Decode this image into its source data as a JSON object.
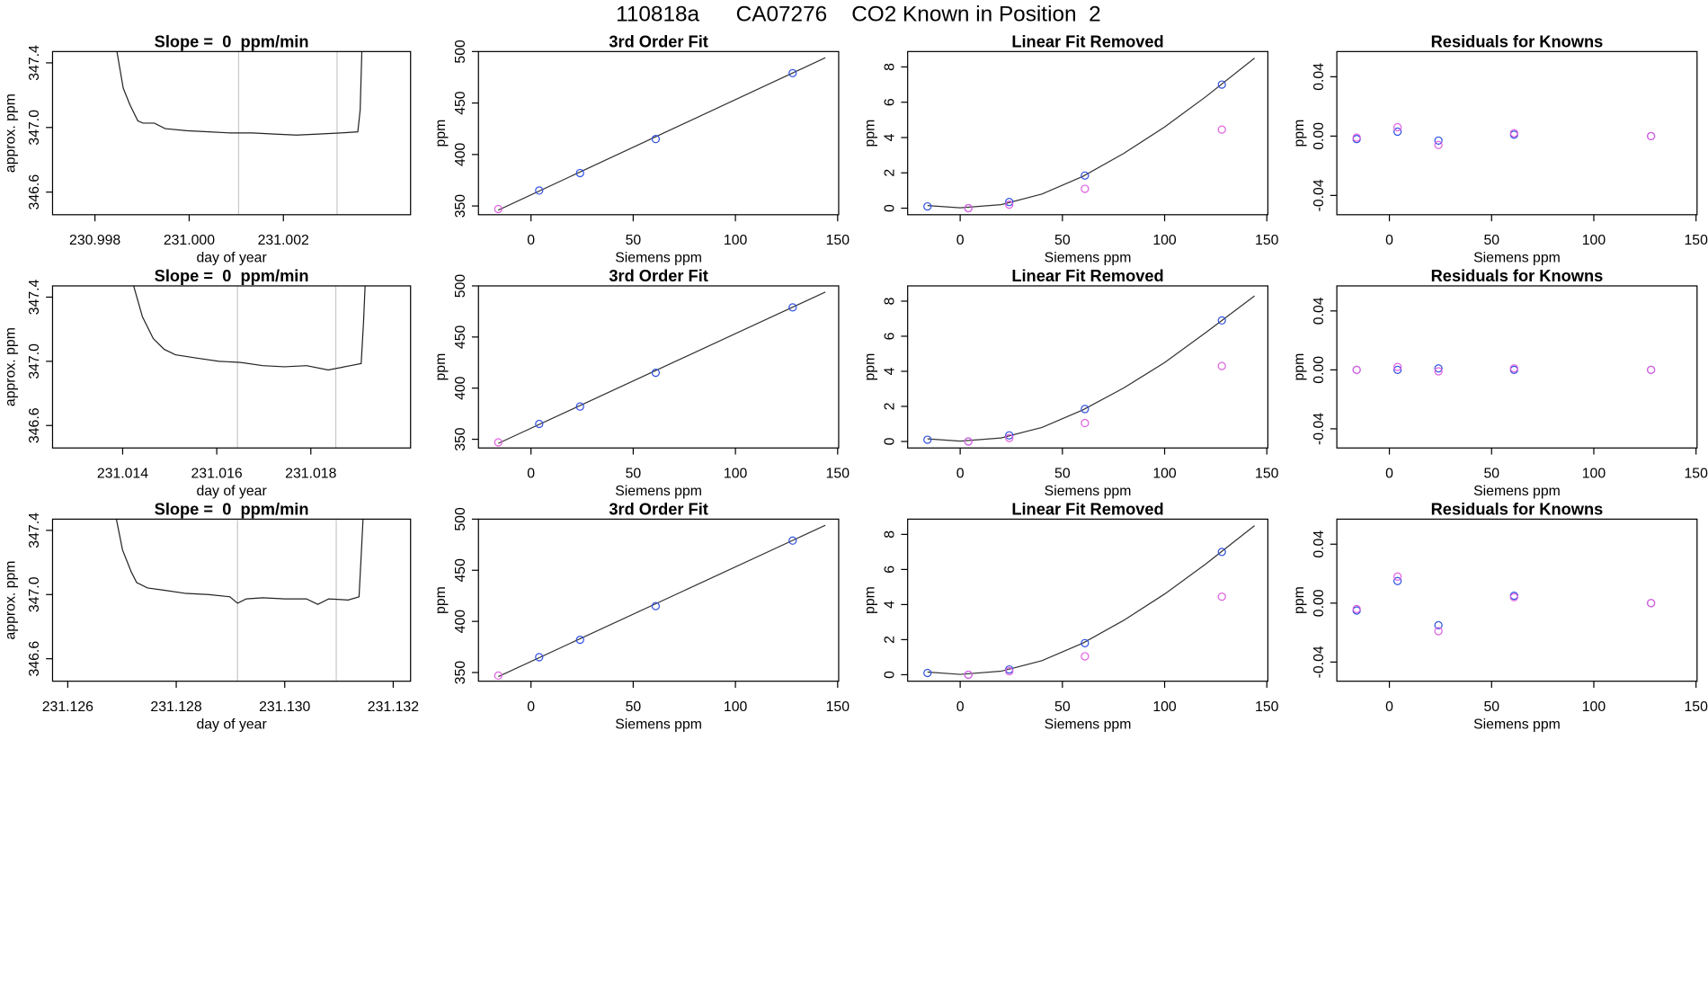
{
  "title": "110818a      CA07276    CO2 Known in Position  2",
  "chart_data": [
    {
      "type": "line",
      "title": "Slope =  0  ppm/min",
      "xlabel": "day of year",
      "ylabel": "approx. ppm",
      "color": "#222222",
      "x": [
        230.99844,
        230.9986,
        230.99874,
        230.99891,
        230.99902,
        230.99926,
        230.99949,
        230.99995,
        231.00042,
        231.00088,
        231.00135,
        231.00181,
        231.00228,
        231.00274,
        231.00321,
        231.00358,
        231.00363,
        231.00367
      ],
      "series": [
        {
          "values": [
            347.515,
            347.244,
            347.142,
            347.041,
            347.027,
            347.027,
            346.993,
            346.98,
            346.973,
            346.966,
            346.966,
            346.959,
            346.953,
            346.959,
            346.966,
            346.973,
            347.108,
            347.515
          ]
        }
      ],
      "vlines": [
        231.00105,
        231.00314
      ],
      "vline_color": "#c8c8c8",
      "xlim": [
        230.9971,
        231.0047
      ],
      "xticks": [
        230.998,
        {
          "value": 231,
          "label": "231.000"
        },
        231.002
      ],
      "ylim": [
        346.46,
        347.47
      ],
      "yticks": [
        346.6,
        {
          "value": 347,
          "label": "347.0"
        },
        347.4
      ]
    },
    {
      "type": "scatter",
      "title": "3rd Order Fit",
      "xlabel": "Siemens ppm",
      "ylabel": "ppm",
      "series": [
        {
          "color": "#3050e0",
          "x": [
            4,
            24,
            61,
            128
          ],
          "values": [
            365,
            382,
            415,
            479
          ]
        },
        {
          "color": "#e060e0",
          "x": [
            -16
          ],
          "values": [
            347
          ]
        }
      ],
      "fit": {
        "color": "#333333",
        "x": [
          -16,
          144
        ],
        "values": [
          346,
          494
        ]
      },
      "xlim": [
        -25.7,
        150.5
      ],
      "xticks": [
        0,
        50,
        100,
        150
      ],
      "ylim": [
        341.5,
        500
      ],
      "yticks": [
        350,
        400,
        450,
        500
      ]
    },
    {
      "type": "scatter",
      "title": "Linear Fit Removed",
      "xlabel": "Siemens ppm",
      "ylabel": "ppm",
      "series": [
        {
          "color": "#3050e0",
          "x": [
            -16,
            4,
            24,
            61,
            128
          ],
          "values": [
            0.1,
            0,
            0.35,
            1.85,
            7.0
          ]
        },
        {
          "color": "#e060e0",
          "x": [
            4,
            24,
            61,
            128
          ],
          "values": [
            0,
            0.2,
            1.1,
            4.45
          ]
        }
      ],
      "fit": {
        "color": "#333333",
        "x": [
          -16,
          0,
          20,
          40,
          60,
          80,
          100,
          120,
          144
        ],
        "values": [
          0.15,
          0.02,
          0.2,
          0.8,
          1.8,
          3.1,
          4.6,
          6.3,
          8.5
        ]
      },
      "xlim": [
        -25.7,
        150.5
      ],
      "xticks": [
        0,
        50,
        100,
        150
      ],
      "ylim": [
        -0.37,
        8.87
      ],
      "yticks": [
        0,
        2,
        4,
        6,
        8
      ]
    },
    {
      "type": "scatter",
      "title": "Residuals for Knowns",
      "xlabel": "Siemens ppm",
      "ylabel": "ppm",
      "series": [
        {
          "color": "#3050e0",
          "x": [
            -16,
            4,
            24,
            61,
            128
          ],
          "values": [
            -0.002,
            0.003,
            -0.003,
            0.001,
            0
          ]
        },
        {
          "color": "#e060e0",
          "x": [
            -16,
            4,
            24,
            61,
            128
          ],
          "values": [
            -0.001,
            0.006,
            -0.006,
            0.002,
            0
          ]
        }
      ],
      "xlim": [
        -25.7,
        150.5
      ],
      "xticks": [
        0,
        50,
        100,
        150
      ],
      "ylim": [
        -0.053,
        0.057
      ],
      "yticks": [
        -0.04,
        {
          "value": 0,
          "label": "0.00"
        },
        0.04
      ]
    },
    {
      "type": "line",
      "title": "Slope =  0  ppm/min",
      "xlabel": "day of year",
      "ylabel": "approx. ppm",
      "color": "#222222",
      "x": [
        231.01419,
        231.01442,
        231.01465,
        231.01488,
        231.01512,
        231.01558,
        231.01605,
        231.01651,
        231.01698,
        231.01744,
        231.01791,
        231.01837,
        231.01884,
        231.01907,
        231.01912,
        231.01916
      ],
      "series": [
        {
          "values": [
            347.515,
            347.278,
            347.142,
            347.075,
            347.041,
            347.02,
            347.0,
            346.993,
            346.973,
            346.966,
            346.973,
            346.946,
            346.973,
            346.986,
            347.244,
            347.515
          ]
        }
      ],
      "vlines": [
        231.01644,
        231.01853
      ],
      "vline_color": "#c8c8c8",
      "xlim": [
        231.01251,
        231.02012
      ],
      "xticks": [
        231.014,
        231.016,
        231.018
      ],
      "ylim": [
        346.46,
        347.47
      ],
      "yticks": [
        346.6,
        {
          "value": 347,
          "label": "347.0"
        },
        347.4
      ]
    },
    {
      "type": "scatter",
      "title": "3rd Order Fit",
      "xlabel": "Siemens ppm",
      "ylabel": "ppm",
      "series": [
        {
          "color": "#3050e0",
          "x": [
            4,
            24,
            61,
            128
          ],
          "values": [
            365,
            382,
            415,
            479
          ]
        },
        {
          "color": "#e060e0",
          "x": [
            -16
          ],
          "values": [
            347
          ]
        }
      ],
      "fit": {
        "color": "#333333",
        "x": [
          -16,
          144
        ],
        "values": [
          346,
          494
        ]
      },
      "xlim": [
        -25.7,
        150.5
      ],
      "xticks": [
        0,
        50,
        100,
        150
      ],
      "ylim": [
        341.5,
        500
      ],
      "yticks": [
        350,
        400,
        450,
        500
      ]
    },
    {
      "type": "scatter",
      "title": "Linear Fit Removed",
      "xlabel": "Siemens ppm",
      "ylabel": "ppm",
      "series": [
        {
          "color": "#3050e0",
          "x": [
            -16,
            4,
            24,
            61,
            128
          ],
          "values": [
            0.1,
            0,
            0.35,
            1.85,
            6.9
          ]
        },
        {
          "color": "#e060e0",
          "x": [
            4,
            24,
            61,
            128
          ],
          "values": [
            0,
            0.2,
            1.05,
            4.3
          ]
        }
      ],
      "fit": {
        "color": "#333333",
        "x": [
          -16,
          0,
          20,
          40,
          60,
          80,
          100,
          120,
          144
        ],
        "values": [
          0.15,
          0.02,
          0.2,
          0.8,
          1.8,
          3.05,
          4.5,
          6.2,
          8.3
        ]
      },
      "xlim": [
        -25.7,
        150.5
      ],
      "xticks": [
        0,
        50,
        100,
        150
      ],
      "ylim": [
        -0.37,
        8.87
      ],
      "yticks": [
        0,
        2,
        4,
        6,
        8
      ]
    },
    {
      "type": "scatter",
      "title": "Residuals for Knowns",
      "xlabel": "Siemens ppm",
      "ylabel": "ppm",
      "series": [
        {
          "color": "#3050e0",
          "x": [
            -16,
            4,
            24,
            61,
            128
          ],
          "values": [
            0,
            0,
            0.001,
            0,
            0
          ]
        },
        {
          "color": "#e060e0",
          "x": [
            -16,
            4,
            24,
            61,
            128
          ],
          "values": [
            0,
            0.002,
            -0.001,
            0.001,
            0
          ]
        }
      ],
      "xlim": [
        -25.7,
        150.5
      ],
      "xticks": [
        0,
        50,
        100,
        150
      ],
      "ylim": [
        -0.053,
        0.057
      ],
      "yticks": [
        -0.04,
        {
          "value": 0,
          "label": "0.00"
        },
        0.04
      ]
    },
    {
      "type": "line",
      "title": "Slope =  0  ppm/min",
      "xlabel": "day of year",
      "ylabel": "approx. ppm",
      "color": "#222222",
      "x": [
        231.12687,
        231.12701,
        231.12717,
        231.12727,
        231.12747,
        231.12778,
        231.12818,
        231.12859,
        231.12899,
        231.12913,
        231.12929,
        231.1296,
        231.13,
        231.1304,
        231.13061,
        231.13081,
        231.13117,
        231.13137,
        231.13141,
        231.13145
      ],
      "series": [
        {
          "values": [
            347.515,
            347.278,
            347.142,
            347.075,
            347.041,
            347.027,
            347.007,
            347.0,
            346.986,
            346.946,
            346.973,
            346.98,
            346.973,
            346.973,
            346.939,
            346.973,
            346.966,
            346.986,
            347.244,
            347.515
          ]
        }
      ],
      "vlines": [
        231.12913,
        231.13095
      ],
      "vline_color": "#c8c8c8",
      "xlim": [
        231.12572,
        231.13232
      ],
      "xticks": [
        231.126,
        231.128,
        {
          "value": 231.13,
          "label": "231.130"
        },
        231.132
      ],
      "ylim": [
        346.46,
        347.47
      ],
      "yticks": [
        346.6,
        {
          "value": 347,
          "label": "347.0"
        },
        347.4
      ]
    },
    {
      "type": "scatter",
      "title": "3rd Order Fit",
      "xlabel": "Siemens ppm",
      "ylabel": "ppm",
      "series": [
        {
          "color": "#3050e0",
          "x": [
            4,
            24,
            61,
            128
          ],
          "values": [
            365,
            382,
            415,
            479
          ]
        },
        {
          "color": "#e060e0",
          "x": [
            -16
          ],
          "values": [
            347
          ]
        }
      ],
      "fit": {
        "color": "#333333",
        "x": [
          -16,
          144
        ],
        "values": [
          346,
          494
        ]
      },
      "xlim": [
        -25.7,
        150.5
      ],
      "xticks": [
        0,
        50,
        100,
        150
      ],
      "ylim": [
        341.5,
        500
      ],
      "yticks": [
        350,
        400,
        450,
        500
      ]
    },
    {
      "type": "scatter",
      "title": "Linear Fit Removed",
      "xlabel": "Siemens ppm",
      "ylabel": "ppm",
      "series": [
        {
          "color": "#3050e0",
          "x": [
            -16,
            4,
            24,
            61,
            128
          ],
          "values": [
            0.1,
            0,
            0.3,
            1.8,
            7.0
          ]
        },
        {
          "color": "#e060e0",
          "x": [
            4,
            24,
            61,
            128
          ],
          "values": [
            0,
            0.2,
            1.05,
            4.45
          ]
        }
      ],
      "fit": {
        "color": "#333333",
        "x": [
          -16,
          0,
          20,
          40,
          60,
          80,
          100,
          120,
          144
        ],
        "values": [
          0.15,
          0.02,
          0.2,
          0.8,
          1.8,
          3.1,
          4.6,
          6.3,
          8.5
        ]
      },
      "xlim": [
        -25.7,
        150.5
      ],
      "xticks": [
        0,
        50,
        100,
        150
      ],
      "ylim": [
        -0.37,
        8.87
      ],
      "yticks": [
        0,
        2,
        4,
        6,
        8
      ]
    },
    {
      "type": "scatter",
      "title": "Residuals for Knowns",
      "xlabel": "Siemens ppm",
      "ylabel": "ppm",
      "series": [
        {
          "color": "#3050e0",
          "x": [
            -16,
            4,
            24,
            61,
            128
          ],
          "values": [
            -0.005,
            0.015,
            -0.015,
            0.005,
            0
          ]
        },
        {
          "color": "#e060e0",
          "x": [
            -16,
            4,
            24,
            61,
            128
          ],
          "values": [
            -0.004,
            0.018,
            -0.019,
            0.004,
            0
          ]
        }
      ],
      "xlim": [
        -25.7,
        150.5
      ],
      "xticks": [
        0,
        50,
        100,
        150
      ],
      "ylim": [
        -0.053,
        0.057
      ],
      "yticks": [
        -0.04,
        {
          "value": 0,
          "label": "0.00"
        },
        0.04
      ]
    }
  ]
}
